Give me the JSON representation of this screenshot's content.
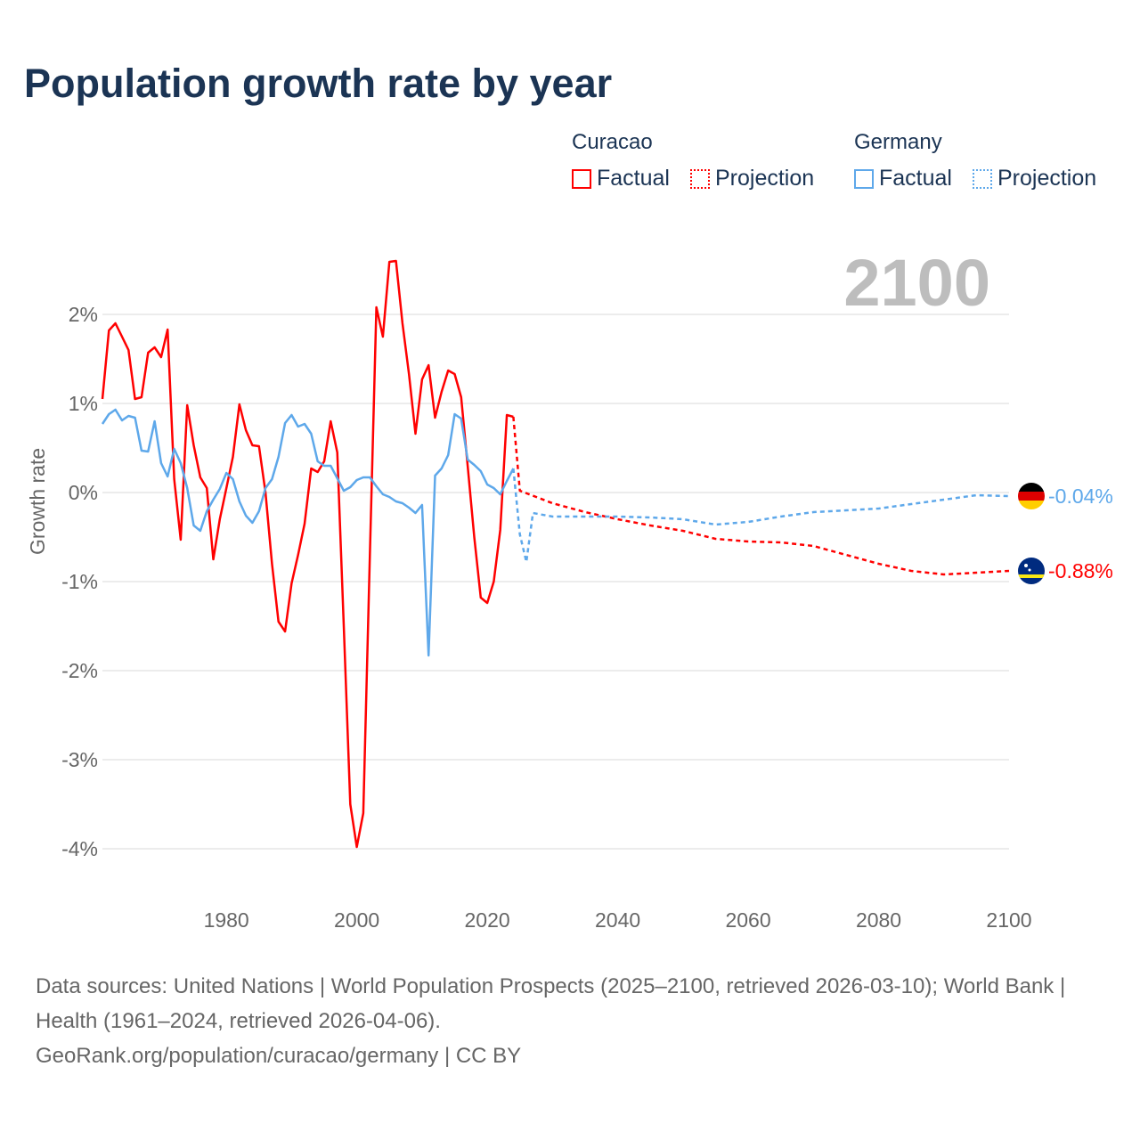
{
  "title": "Population growth rate by year",
  "legend": {
    "groups": [
      {
        "name": "Curacao",
        "color": "#ff0000",
        "factual_label": "Factual",
        "projection_label": "Projection"
      },
      {
        "name": "Germany",
        "color": "#5ea8ea",
        "factual_label": "Factual",
        "projection_label": "Projection"
      }
    ]
  },
  "chart_data": {
    "type": "line",
    "title": "Population growth rate by year",
    "xlabel": "",
    "ylabel": "Growth rate",
    "xlim": [
      1961,
      2100
    ],
    "ylim": [
      -4,
      2
    ],
    "xticks": [
      1980,
      2000,
      2020,
      2040,
      2060,
      2080,
      2100
    ],
    "xtick_labels": [
      "1980",
      "2000",
      "2020",
      "2040",
      "2060",
      "2080",
      "2100"
    ],
    "yticks": [
      2,
      1,
      0,
      -1,
      -2,
      -3,
      -4
    ],
    "ytick_labels": [
      "2%",
      "1%",
      "0%",
      "-1%",
      "-2%",
      "-3%",
      "-4%"
    ],
    "grid": true,
    "year_label": "2100",
    "series": [
      {
        "name": "Curacao",
        "kind": "Factual",
        "color": "#ff0000",
        "x": [
          1961,
          1962,
          1963,
          1964,
          1965,
          1966,
          1967,
          1968,
          1969,
          1970,
          1971,
          1972,
          1973,
          1974,
          1975,
          1976,
          1977,
          1978,
          1979,
          1980,
          1981,
          1982,
          1983,
          1984,
          1985,
          1986,
          1987,
          1988,
          1989,
          1990,
          1991,
          1992,
          1993,
          1994,
          1995,
          1996,
          1997,
          1998,
          1999,
          2000,
          2001,
          2002,
          2003,
          2004,
          2005,
          2006,
          2007,
          2008,
          2009,
          2010,
          2011,
          2012,
          2013,
          2014,
          2015,
          2016,
          2017,
          2018,
          2019,
          2020,
          2021,
          2022,
          2023,
          2024
        ],
        "y": [
          1.05,
          1.82,
          1.9,
          1.75,
          1.6,
          1.05,
          1.07,
          1.57,
          1.63,
          1.52,
          1.83,
          0.15,
          -0.53,
          0.98,
          0.53,
          0.17,
          0.05,
          -0.75,
          -0.3,
          0.05,
          0.4,
          0.99,
          0.7,
          0.53,
          0.52,
          0.0,
          -0.8,
          -1.45,
          -1.56,
          -1.02,
          -0.7,
          -0.35,
          0.27,
          0.23,
          0.35,
          0.8,
          0.45,
          -1.5,
          -3.5,
          -3.98,
          -3.6,
          -0.7,
          2.08,
          1.75,
          2.59,
          2.6,
          1.9,
          1.33,
          0.66,
          1.27,
          1.43,
          0.84,
          1.13,
          1.37,
          1.33,
          1.07,
          0.3,
          -0.5,
          -1.18,
          -1.24,
          -1.0,
          -0.42,
          0.87,
          0.85
        ]
      },
      {
        "name": "Curacao",
        "kind": "Projection",
        "color": "#ff0000",
        "x": [
          2024,
          2025,
          2030,
          2035,
          2040,
          2045,
          2050,
          2055,
          2060,
          2065,
          2070,
          2075,
          2080,
          2085,
          2090,
          2095,
          2100
        ],
        "y": [
          0.85,
          0.02,
          -0.12,
          -0.22,
          -0.3,
          -0.37,
          -0.43,
          -0.52,
          -0.55,
          -0.56,
          -0.6,
          -0.7,
          -0.8,
          -0.88,
          -0.92,
          -0.9,
          -0.88
        ]
      },
      {
        "name": "Germany",
        "kind": "Factual",
        "color": "#5ea8ea",
        "x": [
          1961,
          1962,
          1963,
          1964,
          1965,
          1966,
          1967,
          1968,
          1969,
          1970,
          1971,
          1972,
          1973,
          1974,
          1975,
          1976,
          1977,
          1978,
          1979,
          1980,
          1981,
          1982,
          1983,
          1984,
          1985,
          1986,
          1987,
          1988,
          1989,
          1990,
          1991,
          1992,
          1993,
          1994,
          1995,
          1996,
          1997,
          1998,
          1999,
          2000,
          2001,
          2002,
          2003,
          2004,
          2005,
          2006,
          2007,
          2008,
          2009,
          2010,
          2011,
          2012,
          2013,
          2014,
          2015,
          2016,
          2017,
          2018,
          2019,
          2020,
          2021,
          2022,
          2023,
          2024
        ],
        "y": [
          0.77,
          0.88,
          0.93,
          0.81,
          0.86,
          0.84,
          0.47,
          0.46,
          0.8,
          0.33,
          0.18,
          0.49,
          0.33,
          0.05,
          -0.37,
          -0.43,
          -0.21,
          -0.08,
          0.04,
          0.22,
          0.15,
          -0.1,
          -0.26,
          -0.34,
          -0.21,
          0.05,
          0.15,
          0.4,
          0.78,
          0.87,
          0.74,
          0.77,
          0.66,
          0.35,
          0.3,
          0.3,
          0.16,
          0.02,
          0.06,
          0.14,
          0.17,
          0.17,
          0.07,
          -0.02,
          -0.05,
          -0.1,
          -0.12,
          -0.17,
          -0.23,
          -0.14,
          -1.83,
          0.19,
          0.27,
          0.42,
          0.88,
          0.83,
          0.37,
          0.31,
          0.24,
          0.09,
          0.05,
          -0.02,
          0.13,
          0.27
        ]
      },
      {
        "name": "Germany",
        "kind": "Projection",
        "color": "#5ea8ea",
        "x": [
          2024,
          2025,
          2026,
          2027,
          2030,
          2035,
          2040,
          2045,
          2050,
          2055,
          2060,
          2065,
          2070,
          2075,
          2080,
          2085,
          2090,
          2095,
          2100
        ],
        "y": [
          0.27,
          -0.47,
          -0.78,
          -0.23,
          -0.27,
          -0.27,
          -0.27,
          -0.28,
          -0.3,
          -0.36,
          -0.33,
          -0.27,
          -0.22,
          -0.2,
          -0.18,
          -0.13,
          -0.08,
          -0.03,
          -0.04
        ]
      }
    ],
    "end_labels": [
      {
        "country": "Germany",
        "text": "-0.04%",
        "value": -0.04,
        "color": "#5ea8ea",
        "flag": "germany-flag"
      },
      {
        "country": "Curacao",
        "text": "-0.88%",
        "value": -0.88,
        "color": "#ff0000",
        "flag": "curacao-flag"
      }
    ]
  },
  "footer": {
    "sources": "Data sources: United Nations | World Population Prospects (2025–2100, retrieved 2026-03-10); World Bank | Health (1961–2024, retrieved 2026-04-06).",
    "credit": "GeoRank.org/population/curacao/germany | CC BY"
  }
}
